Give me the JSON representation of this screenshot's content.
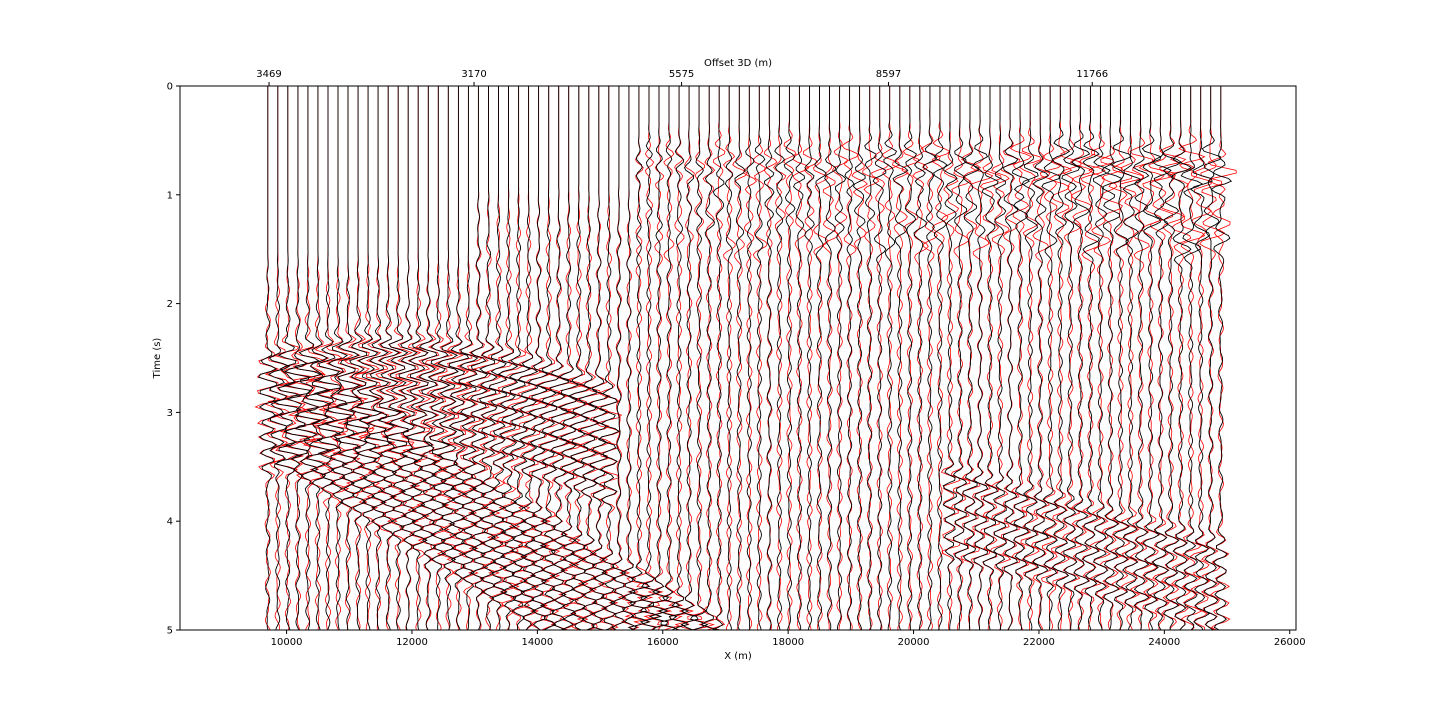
{
  "chart_data": {
    "type": "line",
    "xlabel": "X (m)",
    "ylabel": "Time (s)",
    "top_xlabel": "Offset 3D (m)",
    "xlim": [
      8300,
      26100
    ],
    "ylim": [
      0,
      5
    ],
    "y_inverted": true,
    "x_ticks": [
      10000,
      12000,
      14000,
      16000,
      18000,
      20000,
      22000,
      24000,
      26000
    ],
    "x_tick_labels": [
      "10000",
      "12000",
      "14000",
      "16000",
      "18000",
      "20000",
      "22000",
      "24000",
      "26000"
    ],
    "y_ticks": [
      0,
      1,
      2,
      3,
      4,
      5
    ],
    "y_tick_labels": [
      "0",
      "1",
      "2",
      "3",
      "4",
      "5"
    ],
    "top_ticks": [
      {
        "x": 9720,
        "label": "3469"
      },
      {
        "x": 12990,
        "label": "3170"
      },
      {
        "x": 16300,
        "label": "5575"
      },
      {
        "x": 19600,
        "label": "8597"
      },
      {
        "x": 22850,
        "label": "11766"
      }
    ],
    "trace_x_start": 9700,
    "trace_x_end": 24900,
    "trace_count": 96,
    "grid": false,
    "series": [
      {
        "color": "#ff0000"
      },
      {
        "color": "#000000"
      }
    ]
  }
}
